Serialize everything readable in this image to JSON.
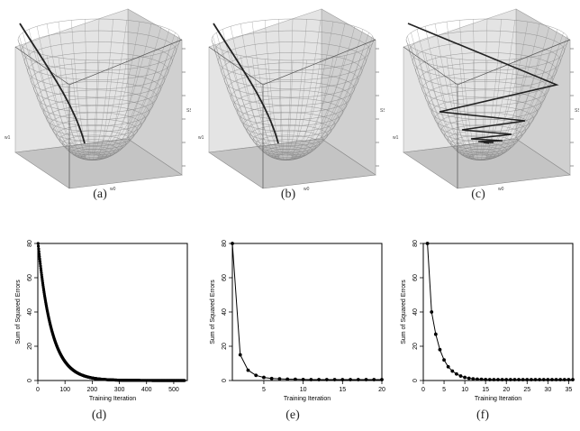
{
  "figure": {
    "top_captions": [
      "(a)",
      "(b)",
      "(c)"
    ],
    "bottom_captions": [
      "(d)",
      "(e)",
      "(f)"
    ],
    "surface_axis_labels": {
      "w0": "w0",
      "w1": "w1",
      "sse": "SSE"
    }
  },
  "chart_data": [
    {
      "type": "line",
      "panel": "(d)",
      "xlabel": "Training Iteration",
      "ylabel": "Sum of Squared Errors",
      "xlim": [
        0,
        550
      ],
      "ylim": [
        0,
        80
      ],
      "xticks": [
        0,
        100,
        200,
        300,
        400,
        500
      ],
      "yticks": [
        0,
        20,
        40,
        60,
        80
      ],
      "series": [
        {
          "decay": "exponential",
          "start": 80,
          "rate": 0.02,
          "n": 540
        }
      ]
    },
    {
      "type": "line",
      "panel": "(e)",
      "xlabel": "Training Iteration",
      "ylabel": "Sum of Squared Errors",
      "xlim": [
        1,
        20
      ],
      "ylim": [
        0,
        80
      ],
      "xticks": [
        5,
        10,
        15,
        20
      ],
      "yticks": [
        0,
        20,
        40,
        60,
        80
      ],
      "x": [
        1,
        2,
        3,
        4,
        5,
        6,
        7,
        8,
        9,
        10,
        11,
        12,
        13,
        14,
        15,
        16,
        17,
        18,
        19,
        20
      ],
      "y": [
        80,
        15,
        6,
        3,
        1.8,
        1.2,
        1,
        0.8,
        0.7,
        0.6,
        0.5,
        0.5,
        0.5,
        0.5,
        0.5,
        0.5,
        0.5,
        0.5,
        0.5,
        0.5
      ]
    },
    {
      "type": "line",
      "panel": "(f)",
      "xlabel": "Training Iteration",
      "ylabel": "Sum of Squared Errors",
      "xlim": [
        0,
        36
      ],
      "ylim": [
        0,
        80
      ],
      "xticks": [
        0,
        5,
        10,
        15,
        20,
        25,
        30,
        35
      ],
      "yticks": [
        0,
        20,
        40,
        60,
        80
      ],
      "x": [
        1,
        2,
        3,
        4,
        5,
        6,
        7,
        8,
        9,
        10,
        11,
        12,
        13,
        14,
        15,
        16,
        17,
        18,
        19,
        20,
        21,
        22,
        23,
        24,
        25,
        26,
        27,
        28,
        29,
        30,
        31,
        32,
        33,
        34,
        35,
        36
      ],
      "y": [
        80,
        40,
        27,
        18,
        12,
        8,
        5.5,
        3.8,
        2.6,
        1.8,
        1.3,
        1,
        0.8,
        0.7,
        0.6,
        0.5,
        0.5,
        0.5,
        0.5,
        0.5,
        0.5,
        0.5,
        0.5,
        0.5,
        0.5,
        0.5,
        0.5,
        0.5,
        0.5,
        0.5,
        0.5,
        0.5,
        0.5,
        0.5,
        0.5,
        0.5
      ]
    }
  ]
}
